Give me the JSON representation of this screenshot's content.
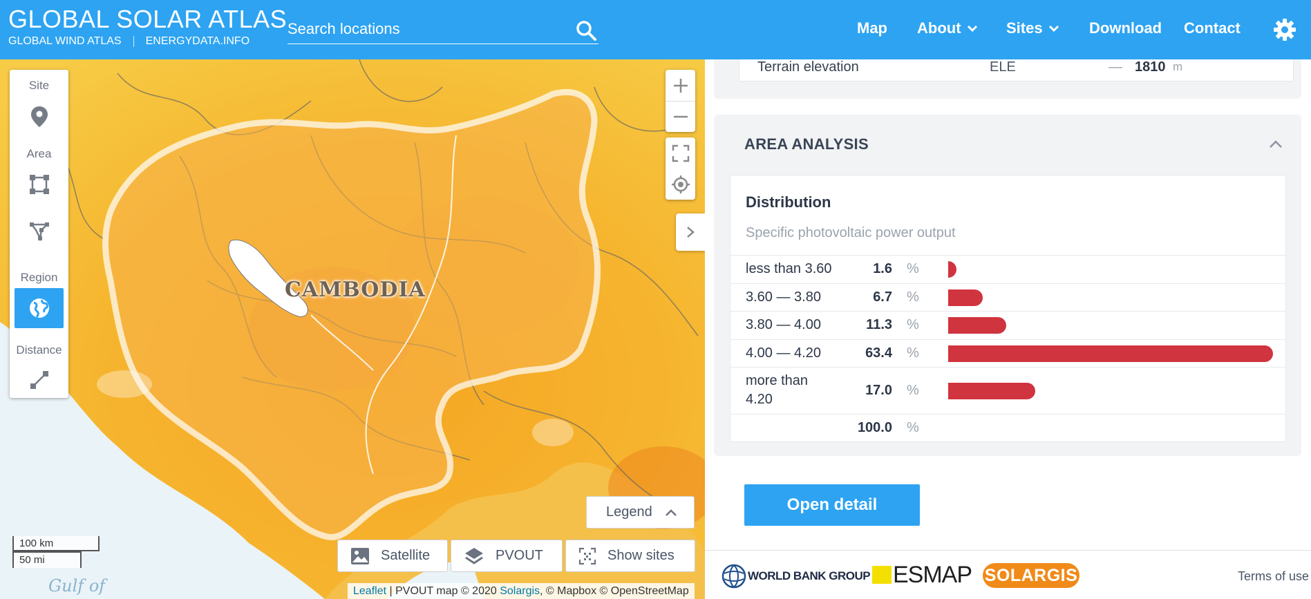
{
  "header": {
    "title": "GLOBAL SOLAR ATLAS",
    "link_wind": "GLOBAL WIND ATLAS",
    "link_energydata": "ENERGYDATA.INFO",
    "search_placeholder": "Search locations",
    "nav": {
      "map": "Map",
      "about": "About",
      "sites": "Sites",
      "download": "Download",
      "contact": "Contact"
    }
  },
  "map": {
    "country_label": "CAMBODIA",
    "sea_label": "Gulf of",
    "tools": {
      "site": "Site",
      "area": "Area",
      "region": "Region",
      "distance": "Distance"
    },
    "legend_label": "Legend",
    "layers": {
      "satellite": "Satellite",
      "pvout": "PVOUT",
      "show_sites": "Show sites"
    },
    "scale": {
      "km": "100 km",
      "mi": "50 mi"
    },
    "attribution": {
      "leaflet": "Leaflet",
      "pvout": " | PVOUT map © 2020 ",
      "solargis": "Solargis",
      "rest": ", © Mapbox © OpenStreetMap"
    }
  },
  "panel": {
    "terrain": {
      "label": "Terrain elevation",
      "code": "ELE",
      "dash": "—",
      "value": "1810",
      "unit": "m"
    },
    "area_analysis": {
      "title": "AREA ANALYSIS",
      "distribution_title": "Distribution",
      "distribution_subtitle": "Specific photovoltaic power output",
      "rows": [
        {
          "range": "less than 3.60",
          "value": "1.6",
          "unit": "%"
        },
        {
          "range": "3.60 — 3.80",
          "value": "6.7",
          "unit": "%"
        },
        {
          "range": "3.80 — 4.00",
          "value": "11.3",
          "unit": "%"
        },
        {
          "range": "4.00 — 4.20",
          "value": "63.4",
          "unit": "%"
        },
        {
          "range": "more than 4.20",
          "value": "17.0",
          "unit": "%"
        }
      ],
      "total": {
        "value": "100.0",
        "unit": "%"
      },
      "open_detail": "Open detail"
    }
  },
  "footer": {
    "world_bank": "WORLD BANK GROUP",
    "esmap": "ESMAP",
    "solargis": "SOLARGIS",
    "terms": "Terms of use"
  },
  "colors": {
    "accent": "#2da3f2",
    "bar": "#d0343f"
  }
}
